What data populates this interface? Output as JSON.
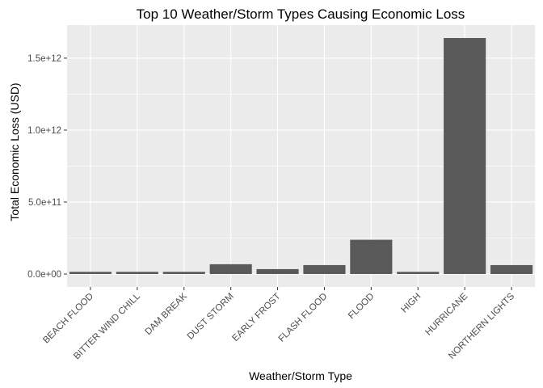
{
  "chart_data": {
    "type": "bar",
    "title": "Top 10 Weather/Storm Types Causing Economic Loss",
    "xlabel": "Weather/Storm Type",
    "ylabel": "Total Economic Loss (USD)",
    "categories": [
      "BEACH FLOOD",
      "BITTER WIND CHILL",
      "DAM BREAK",
      "DUST STORM",
      "EARLY FROST",
      "FLASH FLOOD",
      "FLOOD",
      "HIGH",
      "HURRICANE",
      "NORTHERN LIGHTS"
    ],
    "values": [
      15000000000.0,
      15000000000.0,
      15000000000.0,
      68000000000.0,
      34000000000.0,
      62000000000.0,
      238000000000.0,
      15000000000.0,
      1640000000000.0,
      62000000000.0
    ],
    "ylim": [
      -90000000000.0,
      1730000000000.0
    ],
    "yticks": [
      0,
      500000000000.0,
      1000000000000.0,
      1500000000000.0
    ],
    "ytick_labels": [
      "0.0e+00",
      "5.0e+11",
      "1.0e+12",
      "1.5e+12"
    ],
    "grid": true,
    "legend": "none",
    "colors": {
      "bar": "#595959",
      "panel": "#ebebeb",
      "grid": "#ffffff",
      "tick": "#333333"
    }
  }
}
